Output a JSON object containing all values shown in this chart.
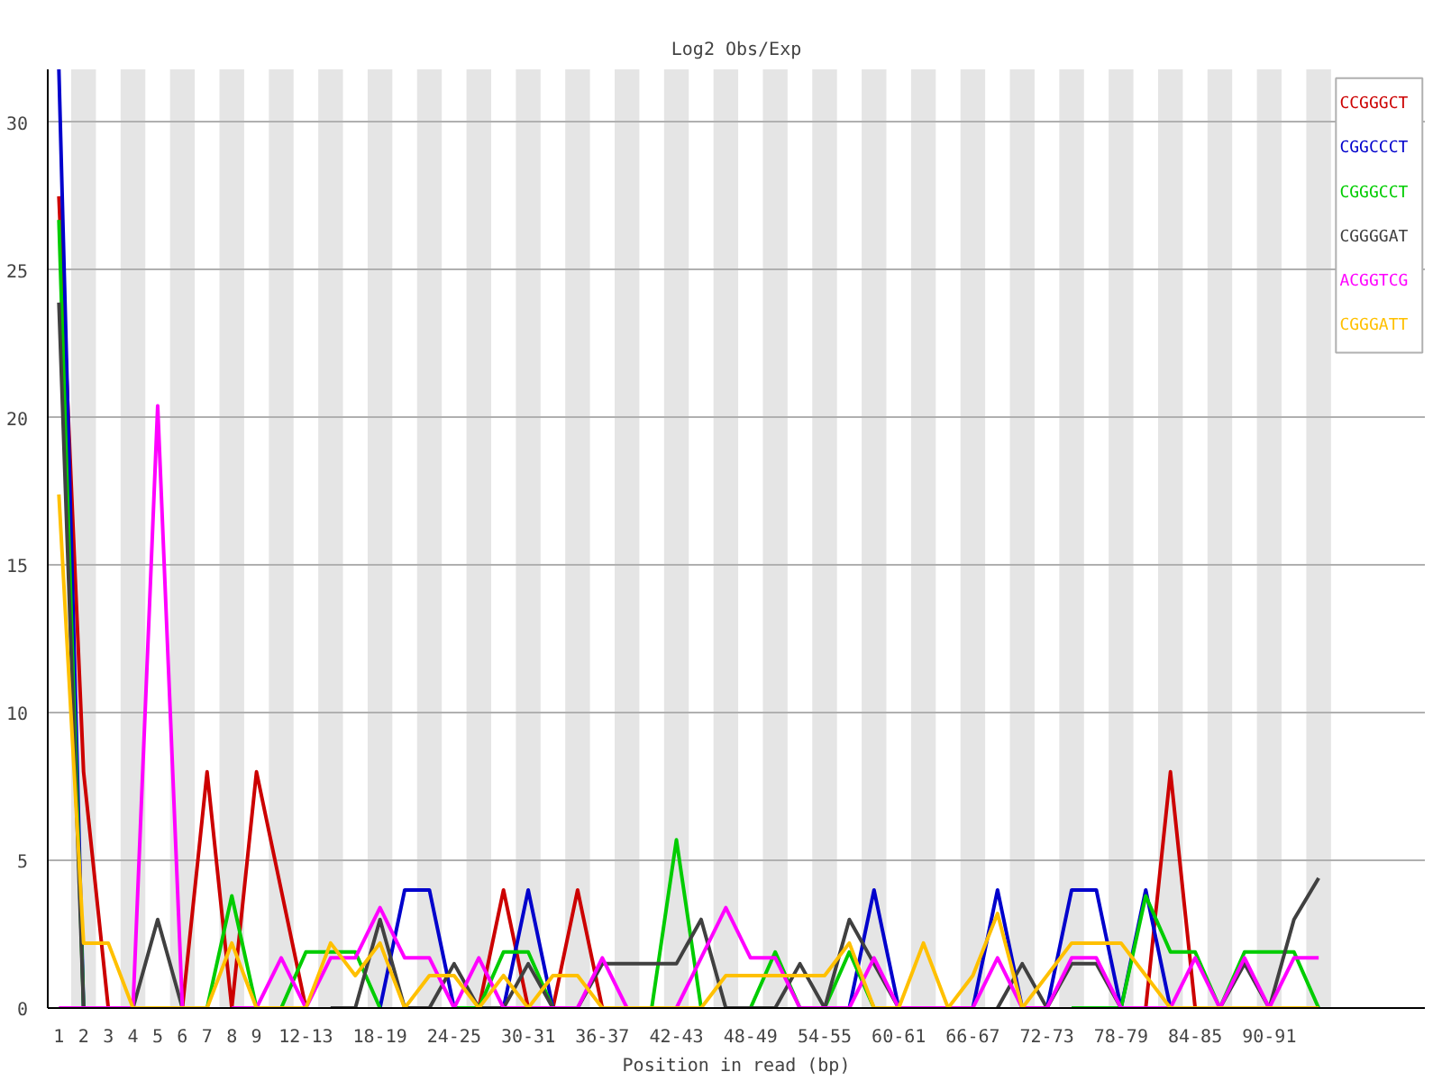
{
  "chart_data": {
    "type": "line",
    "title": "Log2 Obs/Exp",
    "xlabel": "Position in read (bp)",
    "categories": [
      "1",
      "2",
      "3",
      "4",
      "5",
      "6",
      "7",
      "8",
      "9",
      null,
      "12-13",
      null,
      null,
      "18-19",
      null,
      null,
      "24-25",
      null,
      null,
      "30-31",
      null,
      null,
      "36-37",
      null,
      null,
      "42-43",
      null,
      null,
      "48-49",
      null,
      null,
      "54-55",
      null,
      null,
      "60-61",
      null,
      null,
      "66-67",
      null,
      null,
      "72-73",
      null,
      null,
      "78-79",
      null,
      null,
      "84-85",
      null,
      null,
      "90-91",
      null,
      null
    ],
    "series": [
      {
        "name": "CCGGGCT",
        "color": "#cc0000",
        "values": [
          27.5,
          8,
          0,
          null,
          null,
          0,
          8,
          0,
          8,
          4,
          0,
          null,
          null,
          null,
          null,
          null,
          null,
          0,
          4,
          0,
          0,
          4,
          0,
          null,
          null,
          null,
          null,
          null,
          null,
          null,
          null,
          null,
          null,
          null,
          null,
          null,
          null,
          null,
          null,
          null,
          null,
          null,
          null,
          null,
          0,
          8,
          0,
          null,
          null,
          null,
          null,
          null
        ]
      },
      {
        "name": "CGGCCCT",
        "color": "#0000cc",
        "values": [
          31.8,
          0,
          null,
          null,
          null,
          null,
          null,
          null,
          null,
          null,
          null,
          null,
          null,
          0,
          4,
          4,
          0,
          null,
          0,
          4,
          0,
          null,
          null,
          null,
          null,
          null,
          null,
          null,
          null,
          null,
          null,
          null,
          0,
          4,
          0,
          null,
          null,
          0,
          4,
          0,
          0,
          4,
          4,
          0,
          4,
          0,
          null,
          null,
          null,
          null,
          null,
          null
        ]
      },
      {
        "name": "CGGGCCT",
        "color": "#00cc00",
        "values": [
          26.7,
          0,
          null,
          null,
          null,
          null,
          0,
          3.8,
          0,
          0,
          1.9,
          1.9,
          1.9,
          0,
          null,
          null,
          0,
          0,
          1.9,
          1.9,
          0,
          null,
          null,
          null,
          0,
          5.7,
          0,
          null,
          0,
          1.9,
          0,
          0,
          1.9,
          0,
          null,
          null,
          null,
          null,
          null,
          null,
          null,
          0,
          0,
          0,
          3.8,
          1.9,
          1.9,
          0,
          1.9,
          1.9,
          1.9,
          0
        ]
      },
      {
        "name": "CGGGGAT",
        "color": "#404040",
        "values": [
          23.9,
          0,
          null,
          0,
          3,
          0,
          null,
          null,
          null,
          null,
          null,
          0,
          0,
          3,
          0,
          0,
          1.5,
          0,
          0,
          1.5,
          0,
          0,
          1.5,
          1.5,
          1.5,
          1.5,
          3,
          0,
          0,
          0,
          1.5,
          0,
          3,
          1.5,
          0,
          null,
          null,
          null,
          0,
          1.5,
          0,
          1.5,
          1.5,
          0,
          null,
          null,
          null,
          0,
          1.5,
          0,
          3,
          4.4
        ]
      },
      {
        "name": "ACGGTCG",
        "color": "#ff00ff",
        "values": [
          0,
          0,
          0,
          0,
          20.4,
          0,
          null,
          0,
          0,
          1.7,
          0,
          1.7,
          1.7,
          3.4,
          1.7,
          1.7,
          0,
          1.7,
          0,
          0,
          0,
          0,
          1.7,
          0,
          null,
          0,
          1.7,
          3.4,
          1.7,
          1.7,
          0,
          0,
          0,
          1.7,
          0,
          0,
          0,
          0,
          1.7,
          0,
          0,
          1.7,
          1.7,
          0,
          0,
          0,
          1.7,
          0,
          1.7,
          0,
          1.7,
          1.7
        ]
      },
      {
        "name": "CGGGATT",
        "color": "#ffc000",
        "values": [
          17.4,
          2.2,
          2.2,
          0,
          0,
          0,
          0,
          2.2,
          0,
          0,
          0,
          2.2,
          1.1,
          2.2,
          0,
          1.1,
          1.1,
          0,
          1.1,
          0,
          1.1,
          1.1,
          0,
          0,
          0,
          0,
          0,
          1.1,
          1.1,
          1.1,
          1.1,
          1.1,
          2.2,
          0,
          0,
          2.2,
          0,
          1.1,
          3.2,
          0,
          1.1,
          2.2,
          2.2,
          2.2,
          1.1,
          0,
          0,
          0,
          0,
          0,
          0,
          0
        ]
      }
    ],
    "ylim": [
      0,
      31.8
    ],
    "yticks": [
      0,
      5,
      10,
      15,
      20,
      25,
      30
    ],
    "grid": "y",
    "legend": "top right",
    "marker": "none",
    "line_style": "solid"
  }
}
